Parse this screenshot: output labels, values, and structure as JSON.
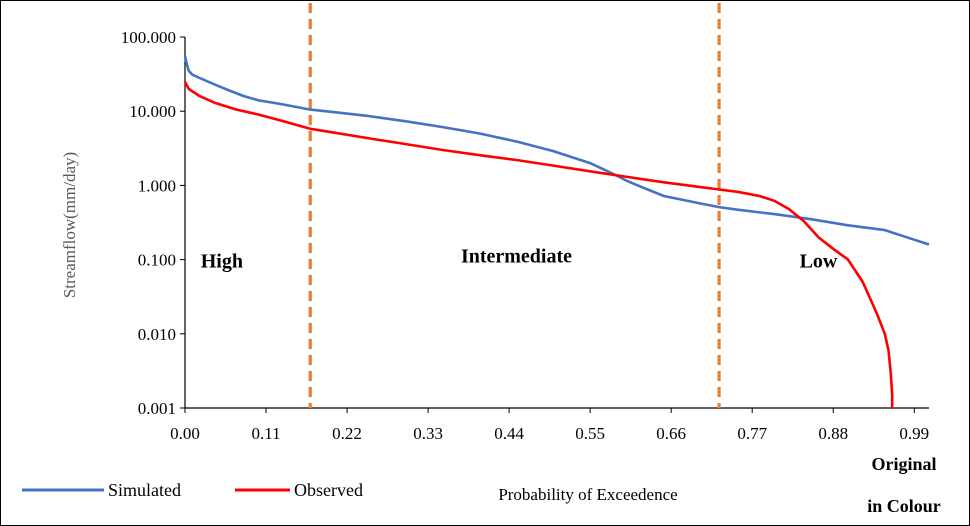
{
  "chart_data": {
    "type": "line",
    "y_scale": "log",
    "ylim": [
      0.001,
      100
    ],
    "xlim": [
      0,
      1.01
    ],
    "grid": false,
    "legend_position": "bottom-left",
    "xlabel": "Probability of Exceedence",
    "ylabel": "Streamflow(mm/day)",
    "x_ticks": [
      "0.00",
      "0.11",
      "0.22",
      "0.33",
      "0.44",
      "0.55",
      "0.66",
      "0.77",
      "0.88",
      "0.99"
    ],
    "y_ticks": [
      "0.001",
      "0.010",
      "0.100",
      "1.000",
      "10.000",
      "100.000"
    ],
    "annotations": [
      {
        "text": "High",
        "x": 0.05,
        "y": 0.095
      },
      {
        "text": "Intermediate",
        "x": 0.45,
        "y": 0.11
      },
      {
        "text": "Low",
        "x": 0.86,
        "y": 0.095
      }
    ],
    "regions": {
      "boundaries": [
        0.17,
        0.725
      ],
      "color": "#ED7D31",
      "style": "dashed"
    },
    "corner_note": [
      "Original",
      "in Colour"
    ],
    "series": [
      {
        "name": "Simulated",
        "color": "#4472C4",
        "points": [
          [
            0.0,
            55
          ],
          [
            0.002,
            45
          ],
          [
            0.005,
            35
          ],
          [
            0.01,
            31
          ],
          [
            0.02,
            28
          ],
          [
            0.04,
            23
          ],
          [
            0.06,
            19
          ],
          [
            0.08,
            16
          ],
          [
            0.1,
            14
          ],
          [
            0.13,
            12.5
          ],
          [
            0.17,
            10.5
          ],
          [
            0.2,
            9.8
          ],
          [
            0.25,
            8.6
          ],
          [
            0.3,
            7.3
          ],
          [
            0.35,
            6.1
          ],
          [
            0.4,
            5.0
          ],
          [
            0.45,
            3.9
          ],
          [
            0.5,
            2.9
          ],
          [
            0.55,
            2.0
          ],
          [
            0.58,
            1.45
          ],
          [
            0.6,
            1.15
          ],
          [
            0.62,
            0.95
          ],
          [
            0.65,
            0.72
          ],
          [
            0.7,
            0.57
          ],
          [
            0.725,
            0.51
          ],
          [
            0.75,
            0.47
          ],
          [
            0.8,
            0.41
          ],
          [
            0.85,
            0.35
          ],
          [
            0.9,
            0.29
          ],
          [
            0.95,
            0.25
          ],
          [
            0.98,
            0.2
          ],
          [
            1.01,
            0.16
          ]
        ]
      },
      {
        "name": "Observed",
        "color": "#FF0000",
        "points": [
          [
            0.0,
            25
          ],
          [
            0.005,
            20
          ],
          [
            0.02,
            16
          ],
          [
            0.04,
            13
          ],
          [
            0.07,
            10.5
          ],
          [
            0.1,
            9
          ],
          [
            0.13,
            7.5
          ],
          [
            0.17,
            5.8
          ],
          [
            0.2,
            5.2
          ],
          [
            0.25,
            4.3
          ],
          [
            0.3,
            3.6
          ],
          [
            0.35,
            3.0
          ],
          [
            0.4,
            2.55
          ],
          [
            0.45,
            2.2
          ],
          [
            0.5,
            1.85
          ],
          [
            0.55,
            1.55
          ],
          [
            0.6,
            1.3
          ],
          [
            0.65,
            1.1
          ],
          [
            0.7,
            0.95
          ],
          [
            0.725,
            0.88
          ],
          [
            0.75,
            0.82
          ],
          [
            0.78,
            0.72
          ],
          [
            0.8,
            0.62
          ],
          [
            0.82,
            0.48
          ],
          [
            0.84,
            0.33
          ],
          [
            0.86,
            0.2
          ],
          [
            0.88,
            0.14
          ],
          [
            0.9,
            0.1
          ],
          [
            0.92,
            0.05
          ],
          [
            0.93,
            0.03
          ],
          [
            0.94,
            0.018
          ],
          [
            0.95,
            0.01
          ],
          [
            0.955,
            0.006
          ],
          [
            0.958,
            0.003
          ],
          [
            0.96,
            0.0015
          ],
          [
            0.96,
            0.001
          ]
        ]
      }
    ]
  }
}
